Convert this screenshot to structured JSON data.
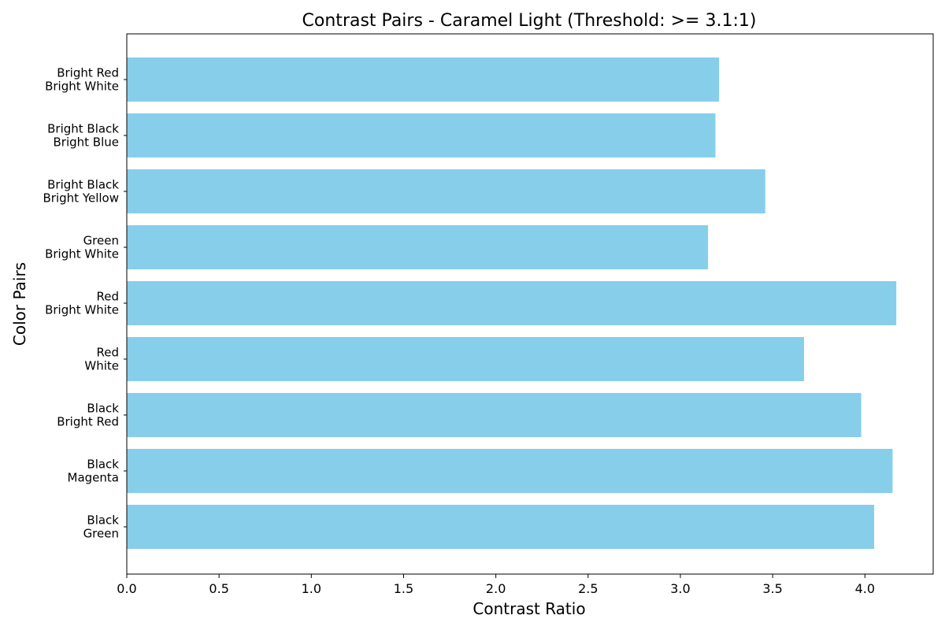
{
  "chart_data": {
    "type": "bar",
    "orientation": "horizontal",
    "title": "Contrast Pairs - Caramel Light (Threshold: >= 3.1:1)",
    "xlabel": "Contrast Ratio",
    "ylabel": "Color Pairs",
    "xlim": [
      0,
      4.37
    ],
    "x_ticks": [
      "0.0",
      "0.5",
      "1.0",
      "1.5",
      "2.0",
      "2.5",
      "3.0",
      "3.5",
      "4.0"
    ],
    "bar_color": "#87ceeb",
    "grid": false,
    "categories": [
      [
        "Bright Red",
        "Bright White"
      ],
      [
        "Bright Black",
        "Bright Blue"
      ],
      [
        "Bright Black",
        "Bright Yellow"
      ],
      [
        "Green",
        "Bright White"
      ],
      [
        "Red",
        "Bright White"
      ],
      [
        "Red",
        "White"
      ],
      [
        "Black",
        "Bright Red"
      ],
      [
        "Black",
        "Magenta"
      ],
      [
        "Black",
        "Green"
      ]
    ],
    "values": [
      3.21,
      3.19,
      3.46,
      3.15,
      4.17,
      3.67,
      3.98,
      4.15,
      4.05
    ]
  }
}
